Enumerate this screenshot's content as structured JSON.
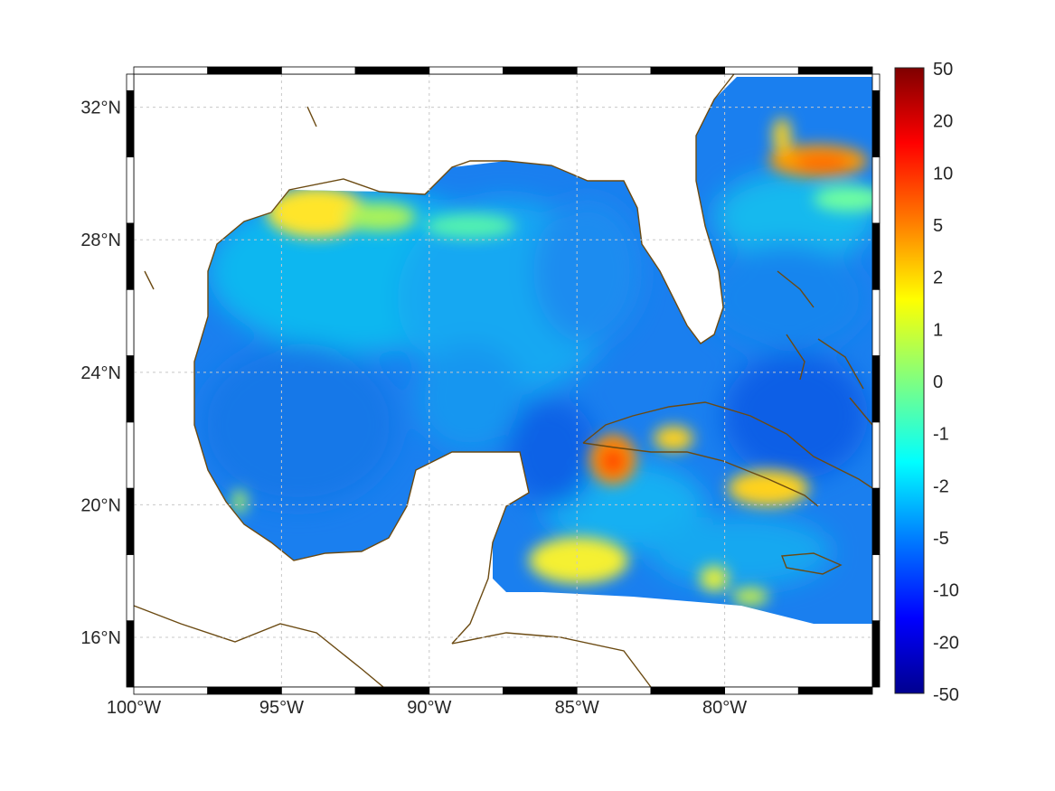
{
  "map": {
    "lon_range": [
      -100,
      -75
    ],
    "lat_range": [
      14.5,
      33
    ],
    "lon_ticks": [
      {
        "value": -100,
        "label": "100°W"
      },
      {
        "value": -95,
        "label": "95°W"
      },
      {
        "value": -90,
        "label": "90°W"
      },
      {
        "value": -85,
        "label": "85°W"
      },
      {
        "value": -80,
        "label": "80°W"
      }
    ],
    "lat_ticks": [
      {
        "value": 32,
        "label": "32°N"
      },
      {
        "value": 28,
        "label": "28°N"
      },
      {
        "value": 24,
        "label": "24°N"
      },
      {
        "value": 20,
        "label": "20°N"
      },
      {
        "value": 16,
        "label": "16°N"
      }
    ],
    "grid": true,
    "coastline_color": "#6b4a12",
    "land_color": "#ffffff"
  },
  "colorbar": {
    "labels": [
      "50",
      "20",
      "10",
      "5",
      "2",
      "1",
      "0",
      "-1",
      "-2",
      "-5",
      "-10",
      "-20",
      "-50"
    ],
    "colormap": "jet",
    "colors": [
      "#7f0000",
      "#ff0000",
      "#ff8000",
      "#ffff00",
      "#80ff80",
      "#00ffff",
      "#0080ff",
      "#0000ff",
      "#00008f"
    ]
  }
}
